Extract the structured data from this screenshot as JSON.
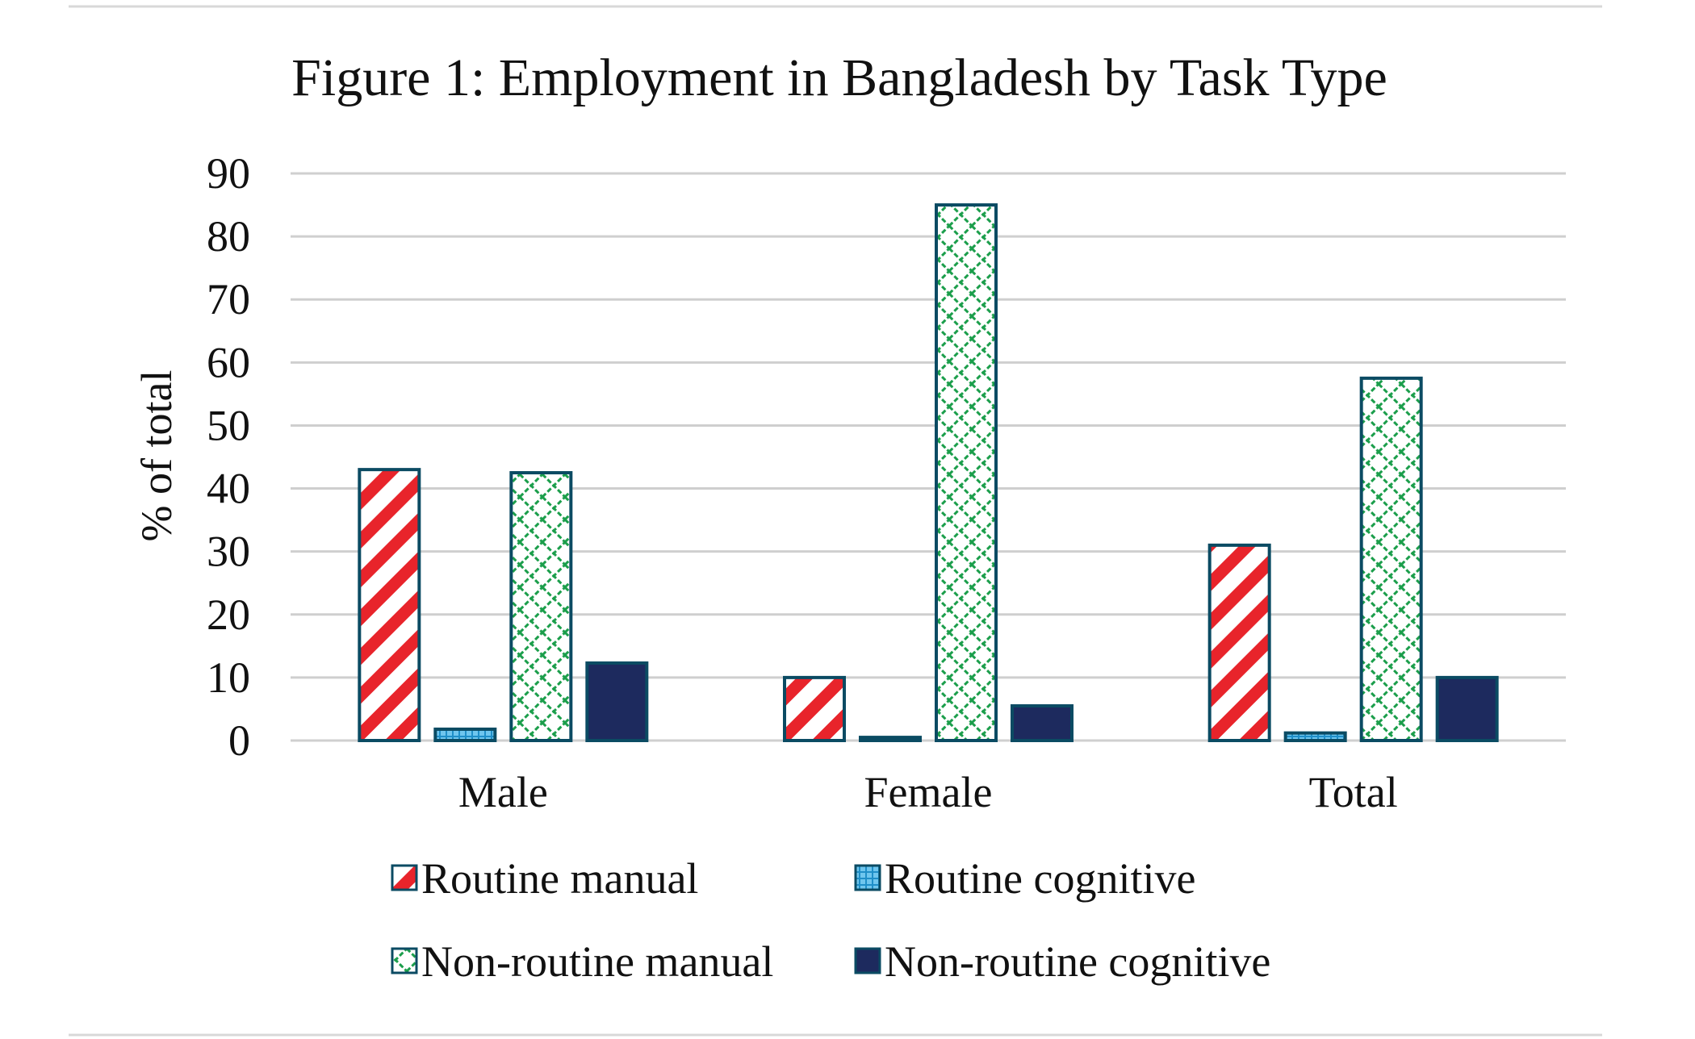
{
  "chart_data": {
    "type": "bar",
    "title": "Figure 1: Employment in Bangladesh by Task Type",
    "xlabel": "",
    "ylabel": "% of total",
    "ylim": [
      0,
      90
    ],
    "yticks": [
      0,
      10,
      20,
      30,
      40,
      50,
      60,
      70,
      80,
      90
    ],
    "grid": true,
    "legend_position": "bottom",
    "categories": [
      "Male",
      "Female",
      "Total"
    ],
    "series": [
      {
        "name": "Routine manual",
        "values": [
          43,
          10,
          31
        ],
        "color": "#e8242b",
        "pattern": "diagonal-stripes"
      },
      {
        "name": "Routine cognitive",
        "values": [
          1.8,
          0.5,
          1.2
        ],
        "color": "#1fa5e0",
        "pattern": "small-grid"
      },
      {
        "name": "Non-routine manual",
        "values": [
          42.5,
          85,
          57.5
        ],
        "color": "#1b9e4b",
        "pattern": "zigzag"
      },
      {
        "name": "Non-routine cognitive",
        "values": [
          12.3,
          5.5,
          10
        ],
        "color": "#1d2a5e",
        "pattern": "solid"
      }
    ]
  }
}
